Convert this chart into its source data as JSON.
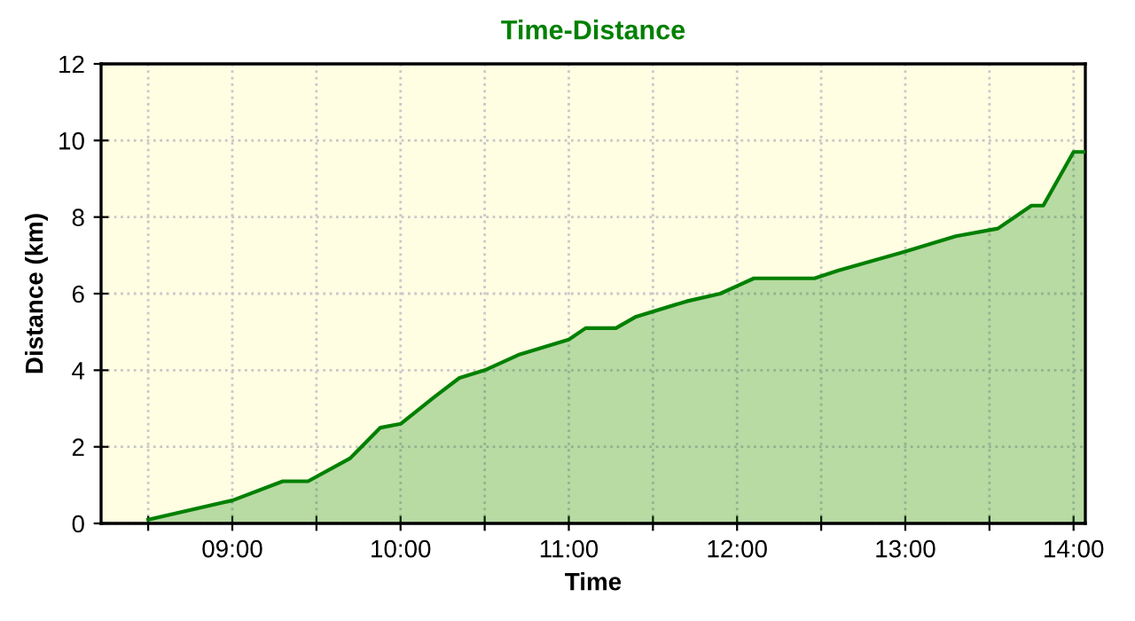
{
  "chart_data": {
    "type": "area",
    "title": "Time-Distance",
    "xlabel": "Time",
    "ylabel": "Distance (km)",
    "series": [
      {
        "color": "#008000",
        "x": [
          8.5,
          9.0,
          9.3,
          9.45,
          9.7,
          9.88,
          10.0,
          10.2,
          10.35,
          10.5,
          10.7,
          11.0,
          11.1,
          11.28,
          11.4,
          11.7,
          11.9,
          12.0,
          12.1,
          12.46,
          12.6,
          13.0,
          13.3,
          13.55,
          13.75,
          13.82,
          14.0,
          14.07
        ],
        "values": [
          0.1,
          0.6,
          1.1,
          1.1,
          1.7,
          2.5,
          2.6,
          3.3,
          3.8,
          4.0,
          4.4,
          4.8,
          5.1,
          5.1,
          5.4,
          5.8,
          6.0,
          6.2,
          6.4,
          6.4,
          6.6,
          7.1,
          7.5,
          7.7,
          8.3,
          8.3,
          9.7,
          9.7
        ]
      }
    ],
    "xlim": [
      8.22,
      14.07
    ],
    "ylim": [
      0,
      12
    ],
    "xticks": [
      {
        "value": 8.5,
        "label": null
      },
      {
        "value": 9,
        "label": "09:00"
      },
      {
        "value": 9.5,
        "label": null
      },
      {
        "value": 10,
        "label": "10:00"
      },
      {
        "value": 10.5,
        "label": null
      },
      {
        "value": 11,
        "label": "11:00"
      },
      {
        "value": 11.5,
        "label": null
      },
      {
        "value": 12,
        "label": "12:00"
      },
      {
        "value": 12.5,
        "label": null
      },
      {
        "value": 13,
        "label": "13:00"
      },
      {
        "value": 13.5,
        "label": null
      },
      {
        "value": 14,
        "label": "14:00"
      }
    ],
    "yticks": [
      0,
      2,
      4,
      6,
      8,
      10,
      12
    ],
    "grid": true,
    "line_style": "solid",
    "marker": "none",
    "legend": false
  }
}
